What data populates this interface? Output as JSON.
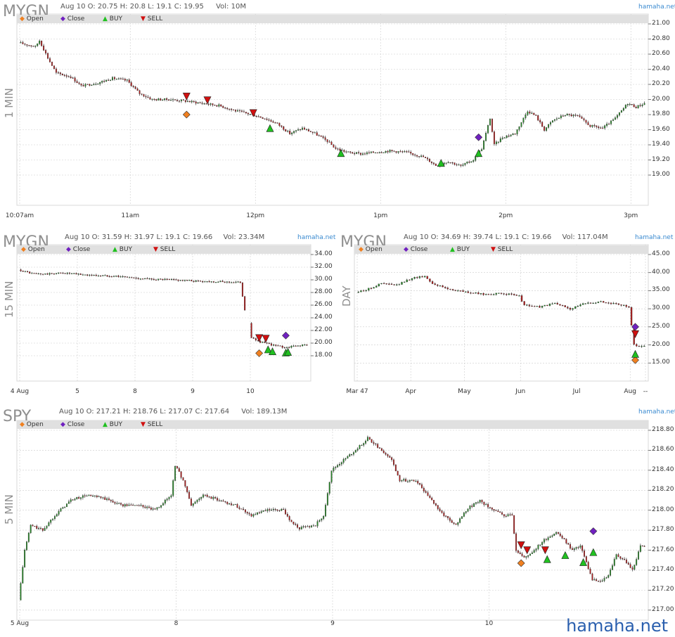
{
  "legend": {
    "open": "Open",
    "close": "Close",
    "buy": "BUY",
    "sell": "SELL"
  },
  "watermark": "hamaha.net",
  "colors": {
    "up": "#2a8a2a",
    "down": "#b02020",
    "open": "#f08020",
    "close": "#7020c0",
    "buy": "#20c020",
    "sell": "#d01010",
    "grid": "#cccccc"
  },
  "chart_data": [
    {
      "id": "mygn-1min",
      "type": "candlestick",
      "ticker": "MYGN",
      "timeframe": "1 MIN",
      "ohlc_text": "Aug 10 O: 20.75 H: 20.8 L: 19.1 C: 19.95",
      "vol_text": "Vol: 10M",
      "site": "hamaha.net",
      "y_ticks": [
        "21.00",
        "20.80",
        "20.60",
        "20.40",
        "20.20",
        "20.00",
        "19.80",
        "19.60",
        "19.40",
        "19.20",
        "19.00"
      ],
      "ylim": [
        18.6,
        21.0
      ],
      "x_ticks": [
        {
          "label": "10:07am",
          "t": 0
        },
        {
          "label": "11am",
          "t": 53
        },
        {
          "label": "12pm",
          "t": 113
        },
        {
          "label": "1pm",
          "t": 173
        },
        {
          "label": "2pm",
          "t": 233
        },
        {
          "label": "3pm",
          "t": 293
        }
      ],
      "x_count": 300,
      "path": [
        [
          0,
          20.75
        ],
        [
          8,
          20.7
        ],
        [
          10,
          20.78
        ],
        [
          14,
          20.55
        ],
        [
          18,
          20.35
        ],
        [
          25,
          20.3
        ],
        [
          30,
          20.18
        ],
        [
          38,
          20.22
        ],
        [
          45,
          20.28
        ],
        [
          52,
          20.25
        ],
        [
          58,
          20.08
        ],
        [
          64,
          20.0
        ],
        [
          72,
          20.0
        ],
        [
          80,
          19.98
        ],
        [
          88,
          19.95
        ],
        [
          96,
          19.92
        ],
        [
          104,
          19.85
        ],
        [
          112,
          19.8
        ],
        [
          118,
          19.75
        ],
        [
          124,
          19.68
        ],
        [
          130,
          19.55
        ],
        [
          136,
          19.62
        ],
        [
          142,
          19.55
        ],
        [
          148,
          19.45
        ],
        [
          152,
          19.35
        ],
        [
          158,
          19.3
        ],
        [
          164,
          19.28
        ],
        [
          170,
          19.3
        ],
        [
          178,
          19.32
        ],
        [
          186,
          19.3
        ],
        [
          194,
          19.24
        ],
        [
          200,
          19.13
        ],
        [
          206,
          19.18
        ],
        [
          212,
          19.12
        ],
        [
          218,
          19.2
        ],
        [
          222,
          19.35
        ],
        [
          226,
          19.75
        ],
        [
          228,
          19.4
        ],
        [
          232,
          19.5
        ],
        [
          238,
          19.55
        ],
        [
          244,
          19.85
        ],
        [
          248,
          19.78
        ],
        [
          252,
          19.6
        ],
        [
          256,
          19.72
        ],
        [
          262,
          19.8
        ],
        [
          268,
          19.78
        ],
        [
          274,
          19.65
        ],
        [
          280,
          19.62
        ],
        [
          286,
          19.75
        ],
        [
          292,
          19.95
        ],
        [
          296,
          19.9
        ],
        [
          300,
          19.95
        ]
      ],
      "markers": [
        {
          "type": "open",
          "t": 80,
          "y": 19.8
        },
        {
          "type": "sell",
          "t": 80,
          "y": 20.04
        },
        {
          "type": "sell",
          "t": 90,
          "y": 19.99
        },
        {
          "type": "sell",
          "t": 112,
          "y": 19.82
        },
        {
          "type": "buy",
          "t": 120,
          "y": 19.62
        },
        {
          "type": "buy",
          "t": 154,
          "y": 19.29
        },
        {
          "type": "buy",
          "t": 202,
          "y": 19.16
        },
        {
          "type": "buy",
          "t": 220,
          "y": 19.29
        },
        {
          "type": "close",
          "t": 220,
          "y": 19.5
        }
      ]
    },
    {
      "id": "mygn-15min",
      "type": "candlestick",
      "ticker": "MYGN",
      "timeframe": "15 MIN",
      "ohlc_text": "Aug 10 O: 31.59 H: 31.97 L: 19.1 C: 19.66",
      "vol_text": "Vol: 23.34M",
      "site": "hamaha.net",
      "y_ticks": [
        "34.00",
        "32.00",
        "30.00",
        "28.00",
        "26.00",
        "24.00",
        "22.00",
        "20.00",
        "18.00"
      ],
      "ylim": [
        14.0,
        34.0
      ],
      "x_ticks": [
        {
          "label": "4 Aug",
          "t": 0
        },
        {
          "label": "5",
          "t": 26
        },
        {
          "label": "8",
          "t": 52
        },
        {
          "label": "9",
          "t": 78
        },
        {
          "label": "10",
          "t": 104
        }
      ],
      "x_count": 130,
      "path": [
        [
          0,
          31.6
        ],
        [
          6,
          31.0
        ],
        [
          12,
          30.9
        ],
        [
          20,
          31.1
        ],
        [
          26,
          30.9
        ],
        [
          34,
          30.7
        ],
        [
          44,
          30.6
        ],
        [
          52,
          30.3
        ],
        [
          60,
          30.1
        ],
        [
          70,
          30.0
        ],
        [
          80,
          29.8
        ],
        [
          90,
          29.7
        ],
        [
          100,
          29.6
        ],
        [
          104,
          21.0
        ],
        [
          108,
          20.3
        ],
        [
          112,
          19.9
        ],
        [
          116,
          19.6
        ],
        [
          120,
          19.3
        ],
        [
          124,
          19.5
        ],
        [
          128,
          19.7
        ],
        [
          130,
          19.7
        ]
      ],
      "markers": [
        {
          "type": "open",
          "t": 108,
          "y": 18.4
        },
        {
          "type": "sell",
          "t": 108,
          "y": 20.8
        },
        {
          "type": "sell",
          "t": 111,
          "y": 20.7
        },
        {
          "type": "buy",
          "t": 112,
          "y": 19.0
        },
        {
          "type": "buy",
          "t": 114,
          "y": 18.7
        },
        {
          "type": "buy",
          "t": 120,
          "y": 18.5
        },
        {
          "type": "buy",
          "t": 121,
          "y": 18.6
        },
        {
          "type": "close",
          "t": 120,
          "y": 21.2
        }
      ]
    },
    {
      "id": "mygn-day",
      "type": "candlestick",
      "ticker": "MYGN",
      "timeframe": "DAY",
      "ohlc_text": "Aug 10 O: 34.69 H: 39.74 L: 19.1 C: 19.66",
      "vol_text": "Vol: 117.04M",
      "site": "hamaha.net",
      "y_ticks": [
        "45.00",
        "40.00",
        "35.00",
        "30.00",
        "25.00",
        "20.00",
        "15.00"
      ],
      "ylim": [
        10.0,
        45.0
      ],
      "x_ticks": [
        {
          "label": "Mar 47",
          "t": 0
        },
        {
          "label": "Apr",
          "t": 21
        },
        {
          "label": "May",
          "t": 42
        },
        {
          "label": "Jun",
          "t": 64
        },
        {
          "label": "Jul",
          "t": 86
        },
        {
          "label": "Aug",
          "t": 107
        },
        {
          "label": "--",
          "t": 113
        }
      ],
      "x_count": 113,
      "path": [
        [
          0,
          34.5
        ],
        [
          5,
          35.5
        ],
        [
          10,
          37.0
        ],
        [
          16,
          36.5
        ],
        [
          22,
          38.5
        ],
        [
          27,
          39.0
        ],
        [
          30,
          37.0
        ],
        [
          36,
          35.5
        ],
        [
          44,
          34.5
        ],
        [
          50,
          34.0
        ],
        [
          58,
          34.2
        ],
        [
          64,
          33.5
        ],
        [
          66,
          31.0
        ],
        [
          72,
          30.5
        ],
        [
          78,
          31.5
        ],
        [
          84,
          30.0
        ],
        [
          90,
          31.5
        ],
        [
          96,
          32.0
        ],
        [
          104,
          31.0
        ],
        [
          107,
          30.5
        ],
        [
          109,
          20.0
        ],
        [
          110,
          19.7
        ]
      ],
      "markers": [
        {
          "type": "open",
          "t": 109,
          "y": 15.8
        },
        {
          "type": "buy",
          "t": 109,
          "y": 17.5
        },
        {
          "type": "sell",
          "t": 109,
          "y": 23.0
        },
        {
          "type": "close",
          "t": 109,
          "y": 25.0
        }
      ]
    },
    {
      "id": "spy-5min",
      "type": "candlestick",
      "ticker": "SPY",
      "timeframe": "5 MIN",
      "ohlc_text": "Aug 10 O: 217.21 H: 218.76 L: 217.07 C: 217.64",
      "vol_text": "Vol: 189.13M",
      "site": "hamaha.net",
      "y_ticks": [
        "218.80",
        "218.60",
        "218.40",
        "218.20",
        "218.00",
        "217.80",
        "217.60",
        "217.40",
        "217.20",
        "217.00"
      ],
      "ylim": [
        216.9,
        218.8
      ],
      "x_ticks": [
        {
          "label": "5 Aug",
          "t": 0
        },
        {
          "label": "8",
          "t": 78
        },
        {
          "label": "9",
          "t": 156
        },
        {
          "label": "10",
          "t": 234
        }
      ],
      "x_count": 312,
      "path": [
        [
          0,
          217.1
        ],
        [
          3,
          217.6
        ],
        [
          6,
          217.85
        ],
        [
          12,
          217.8
        ],
        [
          18,
          217.95
        ],
        [
          26,
          218.1
        ],
        [
          34,
          218.15
        ],
        [
          42,
          218.12
        ],
        [
          52,
          218.05
        ],
        [
          60,
          218.05
        ],
        [
          68,
          218.0
        ],
        [
          76,
          218.15
        ],
        [
          78,
          218.45
        ],
        [
          82,
          218.3
        ],
        [
          86,
          218.05
        ],
        [
          92,
          218.15
        ],
        [
          100,
          218.1
        ],
        [
          108,
          218.05
        ],
        [
          116,
          217.95
        ],
        [
          124,
          218.0
        ],
        [
          132,
          218.0
        ],
        [
          136,
          217.88
        ],
        [
          140,
          217.82
        ],
        [
          148,
          217.85
        ],
        [
          152,
          217.95
        ],
        [
          156,
          218.4
        ],
        [
          162,
          218.5
        ],
        [
          168,
          218.6
        ],
        [
          174,
          218.72
        ],
        [
          180,
          218.62
        ],
        [
          186,
          218.5
        ],
        [
          190,
          218.3
        ],
        [
          198,
          218.3
        ],
        [
          206,
          218.1
        ],
        [
          212,
          217.95
        ],
        [
          218,
          217.85
        ],
        [
          224,
          218.02
        ],
        [
          230,
          218.1
        ],
        [
          236,
          218.0
        ],
        [
          242,
          217.95
        ],
        [
          246,
          217.95
        ],
        [
          248,
          217.6
        ],
        [
          252,
          217.52
        ],
        [
          256,
          217.58
        ],
        [
          262,
          217.7
        ],
        [
          268,
          217.78
        ],
        [
          272,
          217.7
        ],
        [
          276,
          217.6
        ],
        [
          280,
          217.65
        ],
        [
          286,
          217.3
        ],
        [
          290,
          217.28
        ],
        [
          294,
          217.35
        ],
        [
          298,
          217.55
        ],
        [
          302,
          217.5
        ],
        [
          306,
          217.4
        ],
        [
          310,
          217.64
        ],
        [
          312,
          217.64
        ]
      ],
      "markers": [
        {
          "type": "open",
          "t": 250,
          "y": 217.47
        },
        {
          "type": "sell",
          "t": 250,
          "y": 217.65
        },
        {
          "type": "sell",
          "t": 253,
          "y": 217.6
        },
        {
          "type": "sell",
          "t": 262,
          "y": 217.6
        },
        {
          "type": "buy",
          "t": 263,
          "y": 217.51
        },
        {
          "type": "buy",
          "t": 272,
          "y": 217.55
        },
        {
          "type": "buy",
          "t": 281,
          "y": 217.48
        },
        {
          "type": "buy",
          "t": 286,
          "y": 217.58
        },
        {
          "type": "close",
          "t": 286,
          "y": 217.79
        }
      ]
    }
  ]
}
